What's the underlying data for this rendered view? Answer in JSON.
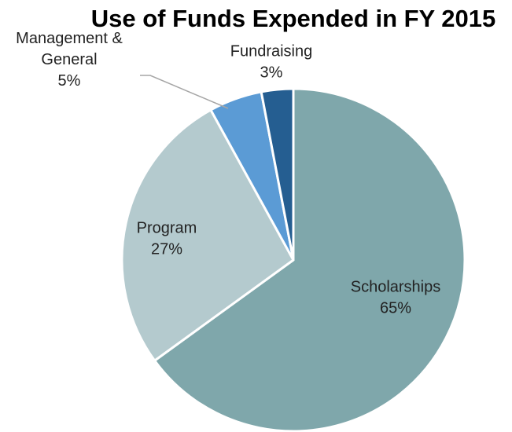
{
  "chart_data": {
    "type": "pie",
    "title": "Use of Funds Expended in FY 2015",
    "slices": [
      {
        "name": "Scholarships",
        "label_lines": [
          "Scholarships"
        ],
        "percent_label": "65%",
        "value": 65,
        "color": "#7FA7AB"
      },
      {
        "name": "Program",
        "label_lines": [
          "Program"
        ],
        "percent_label": "27%",
        "value": 27,
        "color": "#B4CACE"
      },
      {
        "name": "Management & General",
        "label_lines": [
          "Management &",
          "General"
        ],
        "percent_label": "5%",
        "value": 5,
        "color": "#5B9BD5"
      },
      {
        "name": "Fundraising",
        "label_lines": [
          "Fundraising"
        ],
        "percent_label": "3%",
        "value": 3,
        "color": "#255E91"
      }
    ],
    "legend": "none",
    "data_labels": "category and percentage"
  }
}
